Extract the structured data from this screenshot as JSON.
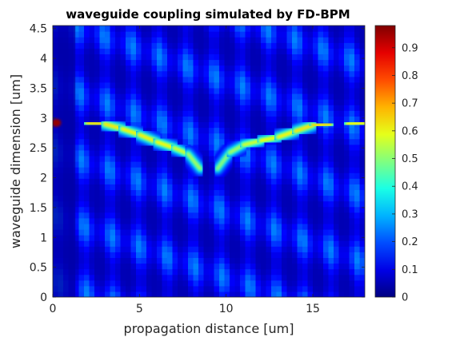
{
  "chart_data": {
    "type": "heatmap",
    "title": "waveguide coupling simulated by FD-BPM",
    "xlabel": "propagation distance [um]",
    "ylabel": "waveguide dimension [um]",
    "xlim": [
      0,
      18
    ],
    "ylim": [
      0,
      4.55
    ],
    "x_ticks": [
      "0",
      "5",
      "10",
      "15"
    ],
    "x_tick_values": [
      0,
      5,
      10,
      15
    ],
    "y_ticks": [
      "0",
      "0.5",
      "1",
      "1.5",
      "2",
      "2.5",
      "3",
      "3.5",
      "4",
      "4.5"
    ],
    "y_tick_values": [
      0,
      0.5,
      1,
      1.5,
      2,
      2.5,
      3,
      3.5,
      4,
      4.5
    ],
    "colorbar": {
      "colormap": "jet",
      "range": [
        0,
        0.98
      ],
      "ticks": [
        "0",
        "0.1",
        "0.2",
        "0.3",
        "0.4",
        "0.5",
        "0.6",
        "0.7",
        "0.8",
        "0.9"
      ],
      "tick_values": [
        0,
        0.1,
        0.2,
        0.3,
        0.4,
        0.5,
        0.6,
        0.7,
        0.8,
        0.9
      ]
    },
    "beam_path": {
      "x": [
        0,
        1,
        2,
        3,
        4,
        5,
        6,
        7,
        7.8,
        8.5,
        9,
        9.5,
        10.2,
        11,
        12,
        13,
        14,
        15,
        16,
        17,
        18
      ],
      "center_y": [
        2.92,
        2.92,
        2.92,
        2.9,
        2.82,
        2.72,
        2.6,
        2.5,
        2.4,
        2.15,
        2.15,
        2.15,
        2.42,
        2.55,
        2.62,
        2.68,
        2.78,
        2.88,
        2.9,
        2.9,
        2.92
      ],
      "peak_intensity": [
        0.95,
        0.7,
        0.65,
        0.65,
        0.62,
        0.62,
        0.63,
        0.6,
        0.55,
        0.5,
        0.55,
        0.5,
        0.5,
        0.55,
        0.6,
        0.62,
        0.62,
        0.65,
        0.65,
        0.62,
        0.62
      ]
    },
    "background_intensity_range": [
      0.05,
      0.25
    ],
    "grid": false
  }
}
